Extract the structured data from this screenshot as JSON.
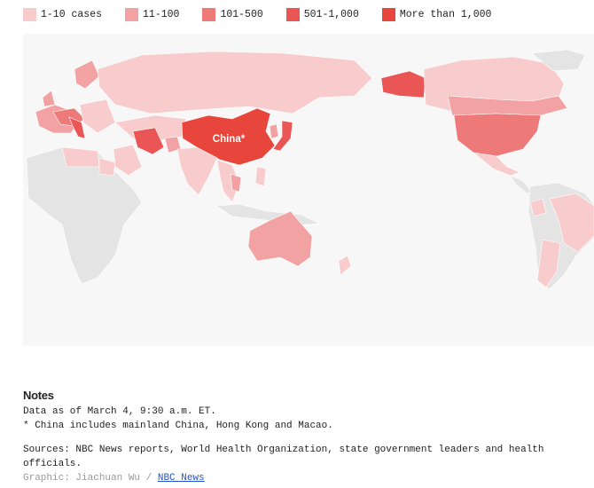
{
  "legend": {
    "items": [
      {
        "label": "1-10 cases",
        "color": "#f8cccc"
      },
      {
        "label": "11-100",
        "color": "#f2a2a2"
      },
      {
        "label": "101-500",
        "color": "#ee7979"
      },
      {
        "label": "501-1,000",
        "color": "#ea5656"
      },
      {
        "label": "More than 1,000",
        "color": "#e8453c"
      }
    ]
  },
  "map": {
    "label": "China*"
  },
  "notes": {
    "title": "Notes",
    "lines": [
      "Data as of March 4, 9:30 a.m. ET.",
      "* China includes mainland China, Hong Kong and Macao."
    ],
    "sources": "Sources: NBC News reports, World Health Organization, state government leaders and health officials.",
    "credit": "Graphic: Jiachuan Wu /",
    "link": "NBC News"
  }
}
